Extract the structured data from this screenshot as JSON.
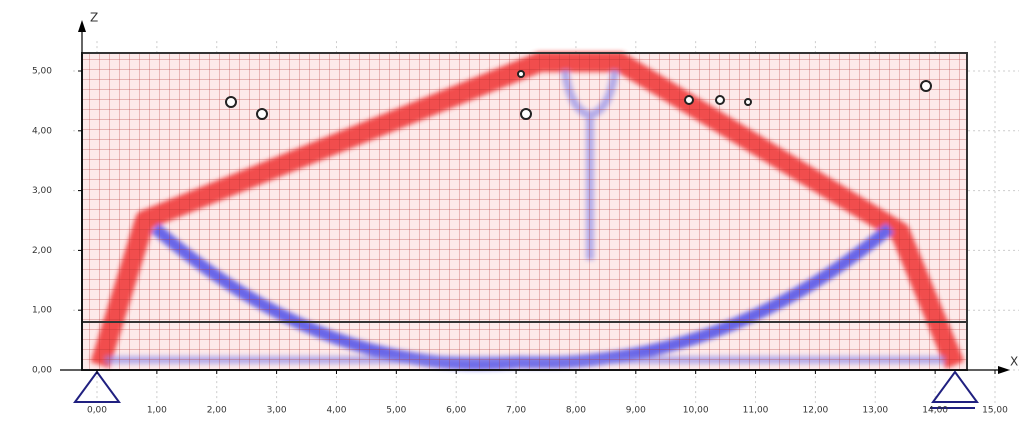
{
  "chart_data": {
    "type": "stress-field",
    "x_label": "X",
    "y_label": "Z",
    "xlim": [
      -0.4,
      15.4
    ],
    "ylim": [
      -0.55,
      5.5
    ],
    "xticks": [
      {
        "value": 0,
        "label": "0,00"
      },
      {
        "value": 1,
        "label": "1,00"
      },
      {
        "value": 2,
        "label": "2,00"
      },
      {
        "value": 3,
        "label": "3,00"
      },
      {
        "value": 4,
        "label": "4,00"
      },
      {
        "value": 5,
        "label": "5,00"
      },
      {
        "value": 6,
        "label": "6,00"
      },
      {
        "value": 7,
        "label": "7,00"
      },
      {
        "value": 8,
        "label": "8,00"
      },
      {
        "value": 9,
        "label": "9,00"
      },
      {
        "value": 10,
        "label": "10,00"
      },
      {
        "value": 11,
        "label": "11,00"
      },
      {
        "value": 12,
        "label": "12,00"
      },
      {
        "value": 13,
        "label": "13,00"
      },
      {
        "value": 14,
        "label": "14,00"
      },
      {
        "value": 15,
        "label": "15,00"
      }
    ],
    "yticks": [
      {
        "value": 0,
        "label": "0,00"
      },
      {
        "value": 1,
        "label": "1,00"
      },
      {
        "value": 2,
        "label": "2,00"
      },
      {
        "value": 3,
        "label": "3,00"
      },
      {
        "value": 4,
        "label": "4,00"
      },
      {
        "value": 5,
        "label": "5,00"
      }
    ],
    "grid": true
  }
}
